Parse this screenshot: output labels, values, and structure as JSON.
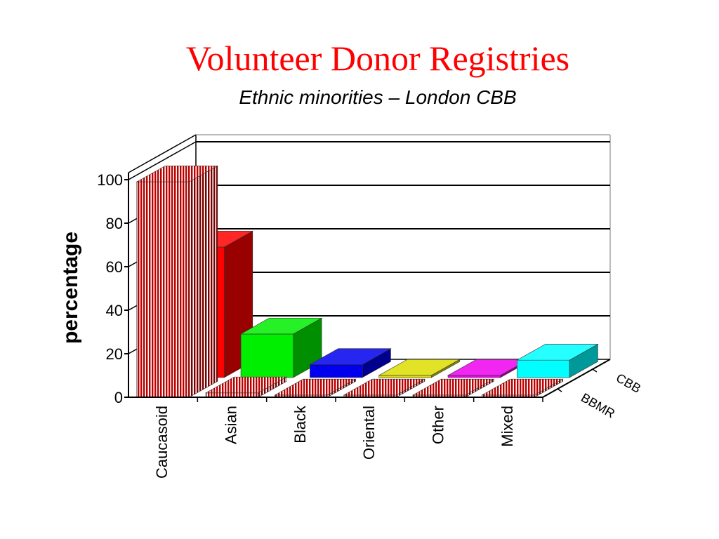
{
  "title": "Volunteer Donor Registries",
  "subtitle": "Ethnic minorities – London CBB",
  "chart_data": {
    "type": "bar",
    "title": "Volunteer Donor Registries",
    "subtitle": "Ethnic minorities – London CBB",
    "ylabel": "percentage",
    "xlabel": "",
    "ylim": [
      0,
      100
    ],
    "yticks": [
      0,
      20,
      40,
      60,
      80,
      100
    ],
    "grid": true,
    "categories": [
      "Caucasoid",
      "Asian",
      "Black",
      "Oriental",
      "Other",
      "Mixed"
    ],
    "series": [
      {
        "name": "BBMR",
        "values": [
          99,
          2,
          1,
          1,
          1,
          1
        ],
        "colors": [
          "#cc0000",
          "#33cc33",
          "#9999cc",
          "#bbbb44",
          "#cc33cc",
          "#44bbbb"
        ]
      },
      {
        "name": "CBB",
        "values": [
          60,
          20,
          6,
          1,
          1,
          8
        ],
        "colors": [
          "#ff0000",
          "#00ee00",
          "#0000ee",
          "#dddd00",
          "#ee00ee",
          "#00ffff"
        ]
      }
    ]
  }
}
